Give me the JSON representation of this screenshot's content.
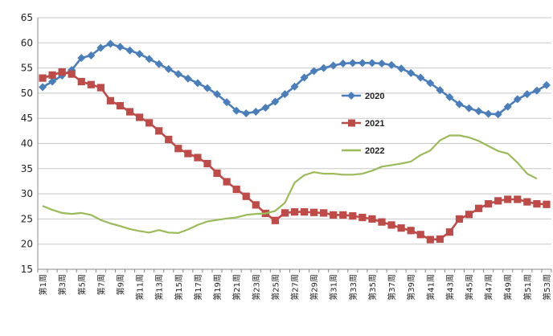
{
  "chart_data": {
    "type": "line",
    "title": "",
    "xlabel": "",
    "ylabel": "",
    "ylim": [
      15,
      65
    ],
    "yticks": [
      15,
      20,
      25,
      30,
      35,
      40,
      45,
      50,
      55,
      60,
      65
    ],
    "grid": "horizontal",
    "legend_position": "center-right",
    "categories": [
      "第1周",
      "第2周",
      "第3周",
      "第4周",
      "第5周",
      "第6周",
      "第7周",
      "第8周",
      "第9周",
      "第10周",
      "第11周",
      "第12周",
      "第13周",
      "第14周",
      "第15周",
      "第16周",
      "第17周",
      "第18周",
      "第19周",
      "第20周",
      "第21周",
      "第22周",
      "第23周",
      "第24周",
      "第25周",
      "第26周",
      "第27周",
      "第28周",
      "第29周",
      "第30周",
      "第31周",
      "第32周",
      "第33周",
      "第34周",
      "第35周",
      "第36周",
      "第37周",
      "第38周",
      "第39周",
      "第40周",
      "第41周",
      "第42周",
      "第43周",
      "第44周",
      "第45周",
      "第46周",
      "第47周",
      "第48周",
      "第49周",
      "第50周",
      "第51周",
      "第52周",
      "第53周"
    ],
    "xtick_labels": [
      "第1周",
      "第3周",
      "第5周",
      "第7周",
      "第9周",
      "第11周",
      "第13周",
      "第15周",
      "第17周",
      "第19周",
      "第21周",
      "第23周",
      "第25周",
      "第27周",
      "第29周",
      "第31周",
      "第33周",
      "第35周",
      "第37周",
      "第39周",
      "第41周",
      "第43周",
      "第45周",
      "第47周",
      "第49周",
      "第51周",
      "第53周"
    ],
    "series": [
      {
        "name": "2020",
        "color": "#4a7ebb",
        "marker": "diamond",
        "values": [
          51.2,
          52.3,
          53.5,
          54.6,
          57.0,
          57.5,
          59.0,
          59.8,
          59.2,
          58.5,
          57.8,
          56.8,
          55.8,
          54.8,
          53.8,
          52.9,
          52.0,
          51.0,
          49.8,
          48.2,
          46.5,
          46.0,
          46.3,
          47.1,
          48.3,
          49.8,
          51.3,
          53.1,
          54.4,
          55.0,
          55.5,
          55.9,
          56.0,
          56.0,
          56.0,
          55.9,
          55.6,
          54.9,
          54.0,
          53.1,
          52.0,
          50.6,
          49.2,
          47.8,
          47.0,
          46.4,
          45.9,
          45.8,
          47.3,
          48.8,
          49.8,
          50.5,
          51.6
        ]
      },
      {
        "name": "2021",
        "color": "#be4b48",
        "marker": "square",
        "values": [
          53.0,
          53.6,
          54.2,
          53.8,
          52.3,
          51.7,
          51.1,
          48.5,
          47.5,
          46.3,
          45.2,
          44.1,
          42.5,
          40.8,
          39.0,
          38.0,
          37.2,
          36.0,
          34.1,
          32.4,
          30.9,
          29.5,
          27.8,
          26.1,
          24.7,
          26.2,
          26.4,
          26.4,
          26.3,
          26.2,
          25.8,
          25.8,
          25.6,
          25.3,
          25.0,
          24.4,
          23.8,
          23.2,
          22.7,
          21.9,
          20.9,
          21.0,
          22.4,
          25.0,
          25.9,
          27.1,
          28.0,
          28.6,
          28.9,
          28.9,
          28.4,
          28.0,
          27.9
        ]
      },
      {
        "name": "2022",
        "color": "#9bbb59",
        "marker": "none",
        "values": [
          27.6,
          26.8,
          26.2,
          26.0,
          26.2,
          25.8,
          24.8,
          24.1,
          23.6,
          23.0,
          22.6,
          22.3,
          22.8,
          22.3,
          22.2,
          22.9,
          23.8,
          24.5,
          24.8,
          25.1,
          25.3,
          25.8,
          26.0,
          26.1,
          26.6,
          28.2,
          32.2,
          33.7,
          34.3,
          34.0,
          34.0,
          33.8,
          33.8,
          34.0,
          34.6,
          35.4,
          35.7,
          36.0,
          36.4,
          37.7,
          38.6,
          40.6,
          41.6,
          41.6,
          41.2,
          40.5,
          39.5,
          38.5,
          38.0,
          36.2,
          34.0,
          33.0,
          null
        ]
      }
    ]
  }
}
